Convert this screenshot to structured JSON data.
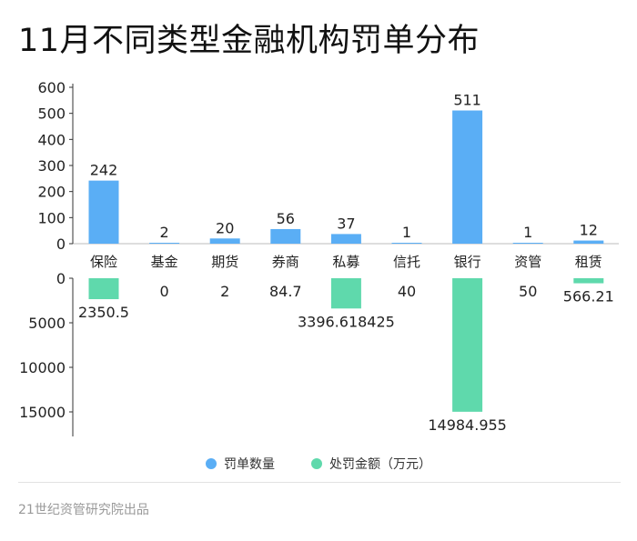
{
  "title": "11月不同类型金融机构罚单分布",
  "source": "21世纪资管研究院出品",
  "legend": {
    "count_label": "罚单数量",
    "amount_label": "处罚金额（万元）"
  },
  "colors": {
    "count": "#5aaef5",
    "amount": "#5fd9ac"
  },
  "chart_data": {
    "type": "bar",
    "categories": [
      "保险",
      "基金",
      "期货",
      "券商",
      "私募",
      "信托",
      "银行",
      "资管",
      "租赁"
    ],
    "series": [
      {
        "name": "罚单数量",
        "values": [
          242,
          2,
          20,
          56,
          37,
          1,
          511,
          1,
          12
        ],
        "labels": [
          "242",
          "2",
          "20",
          "56",
          "37",
          "1",
          "511",
          "1",
          "12"
        ],
        "ylim": [
          0,
          600
        ],
        "ticks": [
          0,
          100,
          200,
          300,
          400,
          500,
          600
        ]
      },
      {
        "name": "处罚金额（万元）",
        "values": [
          2350.5,
          0,
          2,
          84.7,
          3396.618425,
          40,
          14984.955,
          50,
          566.21
        ],
        "labels": [
          "2350.5",
          "0",
          "2",
          "84.7",
          "3396.618425",
          "40",
          "14984.955",
          "50",
          "566.21"
        ],
        "ylim": [
          0,
          17500
        ],
        "ticks": [
          0,
          5000,
          10000,
          15000
        ],
        "direction": "down"
      }
    ]
  }
}
